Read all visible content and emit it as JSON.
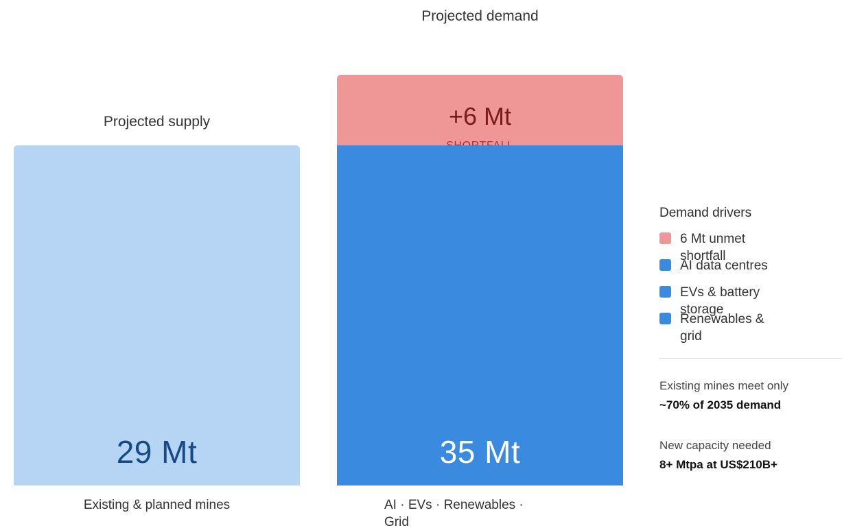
{
  "chart_data": {
    "type": "bar",
    "categories": [
      "Projected supply",
      "Projected demand"
    ],
    "series": [
      {
        "values": [
          29,
          29
        ]
      },
      {
        "values": [
          0,
          6
        ]
      }
    ],
    "supply": {
      "title": "Projected supply",
      "value_label": "29 Mt",
      "value": 29,
      "caption": "Existing & planned mines"
    },
    "demand": {
      "title": "Projected demand",
      "value_label": "35 Mt",
      "value": 35,
      "caption": "AI · EVs · Renewables · Grid",
      "shortfall_value_label": "+6 Mt",
      "shortfall_value": 6,
      "shortfall_label": "SHORTFALL"
    },
    "unit": "Mt"
  },
  "colors": {
    "supply": "#b6d4f3",
    "supply_text": "#164a85",
    "demand": "#3a8bdf",
    "demand_text": "#ffffff",
    "shortfall": "#ef9696"
  },
  "legend": {
    "title": "Demand drivers",
    "items": [
      {
        "label": "6 Mt unmet shortfall",
        "color": "#ef9696",
        "icon": "square-swatch"
      },
      {
        "label": "AI data centres",
        "color": "#3a8bdf",
        "icon": "square-swatch"
      },
      {
        "label": "EVs & battery storage",
        "color": "#3a8bdf",
        "icon": "square-swatch"
      },
      {
        "label": "Renewables & grid",
        "color": "#3a8bdf",
        "icon": "square-swatch"
      }
    ]
  },
  "notes": [
    {
      "label": "Existing mines meet only",
      "value": "~70% of 2035 demand"
    },
    {
      "label": "New capacity needed",
      "value": "8+ Mtpa at US$210B+"
    }
  ]
}
